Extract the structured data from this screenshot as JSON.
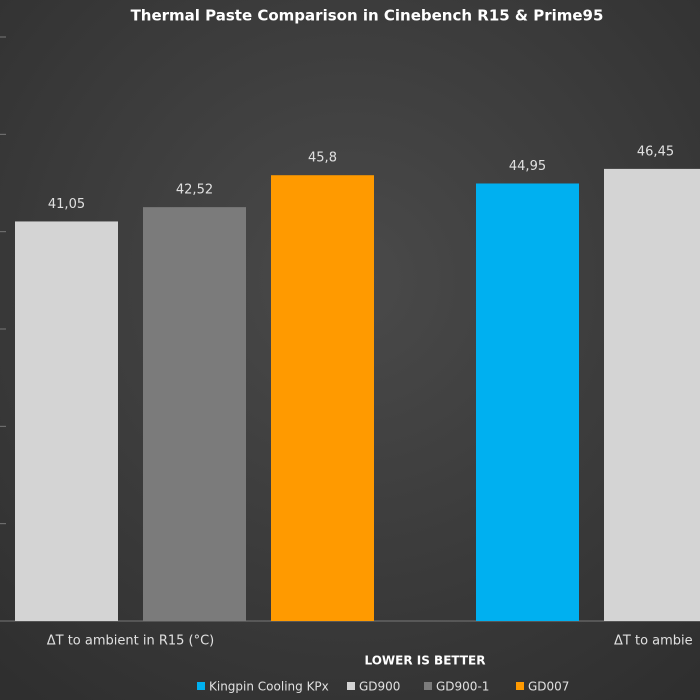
{
  "chart_data": {
    "type": "bar",
    "title": "Thermal Paste Comparison in Cinebench R15 & Prime95",
    "subtitle": "LOWER IS BETTER",
    "categories": [
      "ΔT to ambient in R15 (°C)",
      "ΔT to ambie"
    ],
    "series": [
      {
        "name": "Kingpin Cooling KPx",
        "color": "#00b0f0",
        "values": [
          null,
          44.95
        ],
        "value_labels": [
          null,
          "44,95"
        ]
      },
      {
        "name": "GD900",
        "color": "#d4d4d4",
        "values": [
          41.05,
          46.45
        ],
        "value_labels": [
          "41,05",
          "46,45"
        ]
      },
      {
        "name": "GD900-1",
        "color": "#7b7b7b",
        "values": [
          42.52,
          null
        ],
        "value_labels": [
          "42,52",
          null
        ]
      },
      {
        "name": "GD007",
        "color": "#ff9a00",
        "values": [
          45.8,
          null
        ],
        "value_labels": [
          "45,8",
          null
        ]
      }
    ],
    "ylim": [
      0,
      60
    ],
    "yticks": [
      0,
      10,
      20,
      30,
      40,
      50,
      60
    ],
    "legend": "bottom"
  }
}
